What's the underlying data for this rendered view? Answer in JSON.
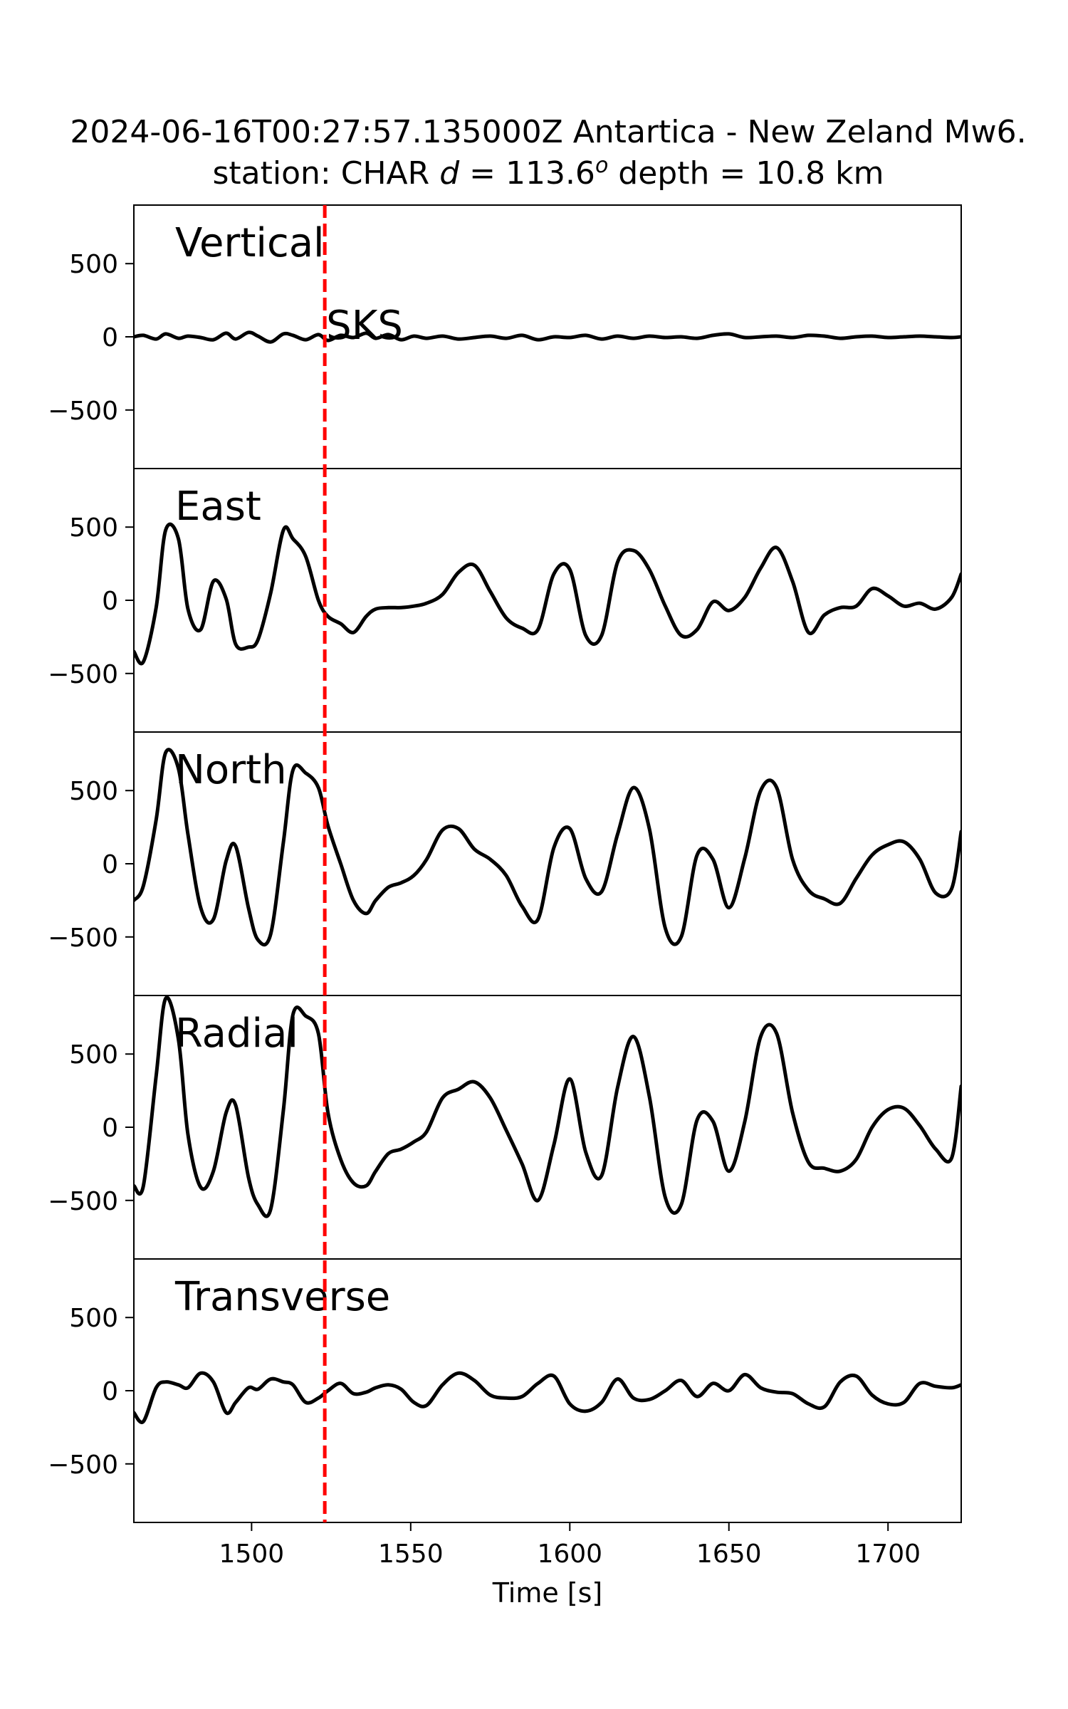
{
  "chart_data": {
    "type": "line",
    "title_line1": "2024-06-16T00:27:57.135000Z Antartica - New Zeland Mw6.",
    "title_line2_prefix": "station: CHAR ",
    "title_line2_d": "d",
    "title_line2_eq": " = 113.6",
    "title_line2_sup": "o",
    "title_line2_suffix": " depth = 10.8 km",
    "xlabel": "Time [s]",
    "xlim": [
      1463,
      1723
    ],
    "ylim": [
      -900,
      900
    ],
    "xticks": [
      1500,
      1550,
      1600,
      1650,
      1700
    ],
    "xtick_labels": [
      "1500",
      "1550",
      "1600",
      "1650",
      "1700"
    ],
    "yticks": [
      500,
      0,
      -500
    ],
    "ytick_labels": [
      "500",
      "0",
      "−500"
    ],
    "phase": {
      "name": "SKS",
      "time": 1523,
      "color": "#ff0000"
    },
    "trace_color": "#000000",
    "series": [
      {
        "name": "Vertical",
        "x": [
          1463,
          1466,
          1470,
          1473,
          1477,
          1480,
          1484,
          1488,
          1492,
          1495,
          1499,
          1502,
          1506,
          1510,
          1513,
          1517,
          1521,
          1524,
          1528,
          1532,
          1536,
          1539,
          1543,
          1547,
          1551,
          1555,
          1560,
          1565,
          1570,
          1575,
          1580,
          1585,
          1590,
          1595,
          1600,
          1605,
          1610,
          1615,
          1620,
          1625,
          1630,
          1635,
          1640,
          1645,
          1650,
          1655,
          1660,
          1665,
          1670,
          1675,
          1680,
          1685,
          1690,
          1695,
          1700,
          1705,
          1710,
          1715,
          1720,
          1723
        ],
        "y": [
          0,
          10,
          -15,
          20,
          -10,
          5,
          -5,
          -20,
          25,
          -15,
          30,
          5,
          -35,
          20,
          10,
          -20,
          15,
          -25,
          10,
          -5,
          25,
          -10,
          15,
          -20,
          5,
          -10,
          5,
          -15,
          -5,
          5,
          -10,
          10,
          -20,
          0,
          -5,
          10,
          -15,
          5,
          -10,
          5,
          -5,
          0,
          -10,
          10,
          20,
          -5,
          0,
          5,
          -5,
          10,
          5,
          -10,
          0,
          5,
          -5,
          0,
          5,
          0,
          -5,
          0
        ]
      },
      {
        "name": "East",
        "x": [
          1463,
          1466,
          1470,
          1473,
          1477,
          1480,
          1484,
          1488,
          1492,
          1495,
          1499,
          1502,
          1506,
          1510,
          1513,
          1517,
          1521,
          1524,
          1528,
          1532,
          1536,
          1539,
          1543,
          1547,
          1551,
          1555,
          1560,
          1565,
          1570,
          1575,
          1580,
          1585,
          1590,
          1595,
          1600,
          1605,
          1610,
          1615,
          1620,
          1625,
          1630,
          1635,
          1640,
          1645,
          1650,
          1655,
          1660,
          1665,
          1670,
          1675,
          1680,
          1685,
          1690,
          1695,
          1700,
          1705,
          1710,
          1715,
          1720,
          1723
        ],
        "y": [
          -350,
          -420,
          -50,
          480,
          420,
          -60,
          -200,
          130,
          10,
          -300,
          -320,
          -270,
          50,
          480,
          420,
          300,
          0,
          -110,
          -160,
          -220,
          -110,
          -60,
          -50,
          -50,
          -40,
          -20,
          40,
          190,
          240,
          60,
          -120,
          -190,
          -200,
          180,
          210,
          -240,
          -240,
          260,
          340,
          210,
          -40,
          -240,
          -200,
          -10,
          -70,
          20,
          220,
          360,
          130,
          -220,
          -100,
          -50,
          -40,
          80,
          30,
          -40,
          -20,
          -60,
          20,
          180
        ]
      },
      {
        "name": "North",
        "x": [
          1463,
          1466,
          1470,
          1473,
          1477,
          1480,
          1484,
          1488,
          1492,
          1495,
          1499,
          1502,
          1506,
          1510,
          1513,
          1517,
          1521,
          1524,
          1528,
          1532,
          1536,
          1539,
          1543,
          1547,
          1551,
          1555,
          1560,
          1565,
          1570,
          1575,
          1580,
          1585,
          1590,
          1595,
          1600,
          1605,
          1610,
          1615,
          1620,
          1625,
          1630,
          1635,
          1640,
          1645,
          1650,
          1655,
          1660,
          1665,
          1670,
          1675,
          1680,
          1685,
          1690,
          1695,
          1700,
          1705,
          1710,
          1715,
          1720,
          1723
        ],
        "y": [
          -250,
          -150,
          300,
          760,
          650,
          200,
          -300,
          -380,
          20,
          120,
          -300,
          -520,
          -480,
          150,
          640,
          620,
          520,
          260,
          0,
          -250,
          -340,
          -250,
          -160,
          -130,
          -80,
          30,
          230,
          240,
          100,
          30,
          -80,
          -290,
          -380,
          110,
          240,
          -100,
          -190,
          200,
          520,
          240,
          -440,
          -500,
          60,
          30,
          -300,
          40,
          500,
          520,
          30,
          -180,
          -240,
          -270,
          -100,
          60,
          130,
          150,
          30,
          -200,
          -170,
          220
        ]
      },
      {
        "name": "Radial",
        "x": [
          1463,
          1466,
          1470,
          1473,
          1477,
          1480,
          1484,
          1488,
          1492,
          1495,
          1499,
          1502,
          1506,
          1510,
          1513,
          1517,
          1521,
          1524,
          1528,
          1532,
          1536,
          1539,
          1543,
          1547,
          1551,
          1555,
          1560,
          1565,
          1570,
          1575,
          1580,
          1585,
          1590,
          1595,
          1600,
          1605,
          1610,
          1615,
          1620,
          1625,
          1630,
          1635,
          1640,
          1645,
          1650,
          1655,
          1660,
          1665,
          1670,
          1675,
          1680,
          1685,
          1690,
          1695,
          1700,
          1705,
          1710,
          1715,
          1720,
          1723
        ],
        "y": [
          -400,
          -400,
          350,
          880,
          600,
          -50,
          -410,
          -300,
          100,
          150,
          -340,
          -530,
          -560,
          120,
          770,
          760,
          640,
          100,
          -220,
          -380,
          -400,
          -300,
          -180,
          -150,
          -100,
          -30,
          200,
          260,
          310,
          200,
          -20,
          -250,
          -500,
          -120,
          330,
          -170,
          -330,
          270,
          620,
          210,
          -480,
          -530,
          50,
          40,
          -300,
          40,
          620,
          640,
          100,
          -240,
          -280,
          -300,
          -220,
          0,
          120,
          130,
          10,
          -150,
          -210,
          280
        ]
      },
      {
        "name": "Transverse",
        "x": [
          1463,
          1466,
          1470,
          1473,
          1477,
          1480,
          1484,
          1488,
          1492,
          1495,
          1499,
          1502,
          1506,
          1510,
          1513,
          1517,
          1521,
          1524,
          1528,
          1532,
          1536,
          1539,
          1543,
          1547,
          1551,
          1555,
          1560,
          1565,
          1570,
          1575,
          1580,
          1585,
          1590,
          1595,
          1600,
          1605,
          1610,
          1615,
          1620,
          1625,
          1630,
          1635,
          1640,
          1645,
          1650,
          1655,
          1660,
          1665,
          1670,
          1675,
          1680,
          1685,
          1690,
          1695,
          1700,
          1705,
          1710,
          1715,
          1720,
          1723
        ],
        "y": [
          -150,
          -210,
          20,
          60,
          40,
          20,
          120,
          60,
          -150,
          -80,
          20,
          10,
          80,
          60,
          40,
          -80,
          -50,
          0,
          50,
          -20,
          -10,
          20,
          40,
          10,
          -80,
          -100,
          40,
          120,
          70,
          -30,
          -50,
          -40,
          50,
          100,
          -90,
          -140,
          -80,
          80,
          -50,
          -60,
          0,
          70,
          -40,
          50,
          0,
          110,
          20,
          -10,
          -20,
          -90,
          -110,
          60,
          100,
          -30,
          -90,
          -80,
          50,
          30,
          20,
          40
        ]
      }
    ]
  }
}
